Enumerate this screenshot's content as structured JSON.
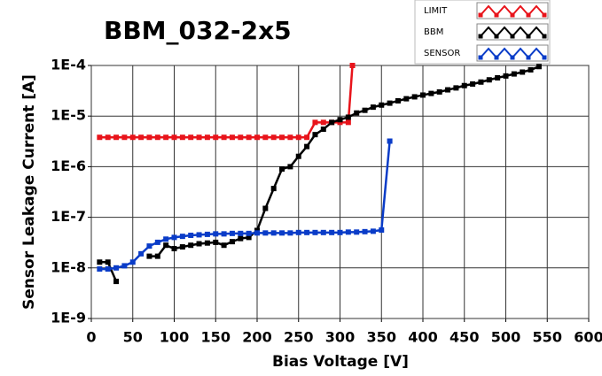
{
  "chart_data": {
    "type": "line",
    "title": "BBM_032-2x5",
    "x_label": "Bias Voltage [V]",
    "y_label": "Sensor Leakage Current [A]",
    "xlim": [
      0,
      600
    ],
    "xticks": [
      0,
      50,
      100,
      150,
      200,
      250,
      300,
      350,
      400,
      450,
      500,
      550,
      600
    ],
    "ylim": [
      1e-09,
      0.0001
    ],
    "log_y": true,
    "grid": true,
    "yticks": [
      {
        "value": 1e-09,
        "label": "1E-9"
      },
      {
        "value": 1e-08,
        "label": "1E-8"
      },
      {
        "value": 1e-07,
        "label": "1E-7"
      },
      {
        "value": 1e-06,
        "label": "1E-6"
      },
      {
        "value": 1e-05,
        "label": "1E-5"
      },
      {
        "value": 0.0001,
        "label": "1E-4"
      }
    ],
    "legend": "top-right",
    "series": [
      {
        "name": "LIMIT",
        "color": "#e8141b",
        "x": [
          10,
          20,
          30,
          40,
          50,
          60,
          70,
          80,
          90,
          100,
          110,
          120,
          130,
          140,
          150,
          160,
          170,
          180,
          190,
          200,
          210,
          220,
          230,
          240,
          250,
          260,
          270,
          280,
          290,
          300,
          310,
          315
        ],
        "values": [
          3.8e-06,
          3.8e-06,
          3.8e-06,
          3.8e-06,
          3.8e-06,
          3.8e-06,
          3.8e-06,
          3.8e-06,
          3.8e-06,
          3.8e-06,
          3.8e-06,
          3.8e-06,
          3.8e-06,
          3.8e-06,
          3.8e-06,
          3.8e-06,
          3.8e-06,
          3.8e-06,
          3.8e-06,
          3.8e-06,
          3.8e-06,
          3.8e-06,
          3.8e-06,
          3.8e-06,
          3.8e-06,
          3.8e-06,
          7.5e-06,
          7.5e-06,
          7.5e-06,
          7.5e-06,
          7.5e-06,
          0.0001
        ]
      },
      {
        "name": "BBM",
        "color": "#000000",
        "x": [
          10,
          20,
          30,
          50,
          70,
          80,
          90,
          100,
          110,
          120,
          130,
          140,
          150,
          160,
          170,
          180,
          190,
          200,
          210,
          220,
          230,
          240,
          250,
          260,
          270,
          280,
          290,
          300,
          310,
          320,
          330,
          340,
          350,
          360,
          370,
          380,
          390,
          400,
          410,
          420,
          430,
          440,
          450,
          460,
          470,
          480,
          490,
          500,
          510,
          520,
          530,
          540
        ],
        "values": [
          1.3e-08,
          1.3e-08,
          5.4e-09,
          null,
          1.7e-08,
          1.7e-08,
          2.8e-08,
          2.4e-08,
          2.6e-08,
          2.8e-08,
          3e-08,
          3.1e-08,
          3.2e-08,
          2.8e-08,
          3.3e-08,
          3.8e-08,
          4e-08,
          5.5e-08,
          1.5e-07,
          3.7e-07,
          9e-07,
          1e-06,
          1.6e-06,
          2.5e-06,
          4.3e-06,
          5.5e-06,
          7.5e-06,
          8.5e-06,
          9.5e-06,
          1.15e-05,
          1.3e-05,
          1.5e-05,
          1.65e-05,
          1.8e-05,
          2e-05,
          2.2e-05,
          2.4e-05,
          2.6e-05,
          2.8e-05,
          3e-05,
          3.3e-05,
          3.6e-05,
          4e-05,
          4.3e-05,
          4.7e-05,
          5.2e-05,
          5.7e-05,
          6.2e-05,
          6.8e-05,
          7.4e-05,
          8.2e-05,
          9.5e-05
        ]
      },
      {
        "name": "SENSOR",
        "color": "#0a3cc8",
        "x": [
          10,
          20,
          30,
          40,
          50,
          60,
          70,
          80,
          90,
          100,
          110,
          120,
          130,
          140,
          150,
          160,
          170,
          180,
          190,
          200,
          210,
          220,
          230,
          240,
          250,
          260,
          270,
          280,
          290,
          300,
          310,
          320,
          330,
          340,
          350,
          360
        ],
        "values": [
          9.5e-09,
          9.5e-09,
          1e-08,
          1.1e-08,
          1.3e-08,
          1.9e-08,
          2.7e-08,
          3.2e-08,
          3.7e-08,
          4e-08,
          4.2e-08,
          4.4e-08,
          4.5e-08,
          4.6e-08,
          4.7e-08,
          4.7e-08,
          4.8e-08,
          4.8e-08,
          4.8e-08,
          4.9e-08,
          4.9e-08,
          4.9e-08,
          4.9e-08,
          4.9e-08,
          5e-08,
          5e-08,
          5e-08,
          5e-08,
          5e-08,
          5e-08,
          5.1e-08,
          5.1e-08,
          5.2e-08,
          5.3e-08,
          5.6e-08,
          3.2e-06
        ]
      }
    ]
  }
}
